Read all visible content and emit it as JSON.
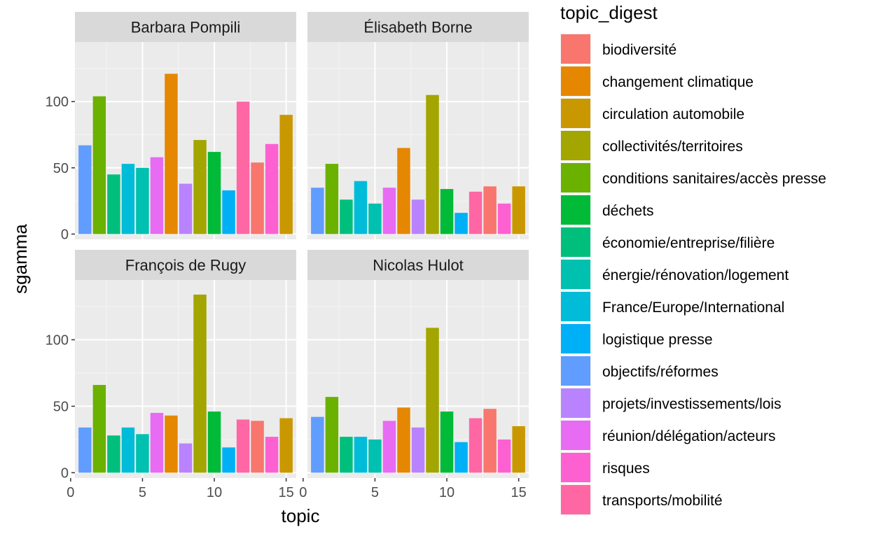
{
  "chart_data": {
    "type": "bar",
    "xlabel": "topic",
    "ylabel": "sgamma",
    "xlim": [
      0.3,
      15.7
    ],
    "ylim": [
      -4,
      145
    ],
    "xticks": [
      0,
      5,
      10,
      15
    ],
    "yticks": [
      0,
      50,
      100
    ],
    "grid": true,
    "legend_position": "right",
    "legend": {
      "title": "topic_digest",
      "entries": [
        {
          "label": "biodiversité",
          "color": "#F8766D"
        },
        {
          "label": "changement climatique",
          "color": "#E58700"
        },
        {
          "label": "circulation automobile",
          "color": "#C99800"
        },
        {
          "label": "collectivités/territoires",
          "color": "#A3A500"
        },
        {
          "label": "conditions sanitaires/accès presse",
          "color": "#6BB100"
        },
        {
          "label": "déchets",
          "color": "#00BA38"
        },
        {
          "label": "économie/entreprise/filière",
          "color": "#00BF7D"
        },
        {
          "label": "énergie/rénovation/logement",
          "color": "#00C0AF"
        },
        {
          "label": "France/Europe/International",
          "color": "#00BCD8"
        },
        {
          "label": "logistique presse",
          "color": "#00B0F6"
        },
        {
          "label": "objectifs/réformes",
          "color": "#619CFF"
        },
        {
          "label": "projets/investissements/lois",
          "color": "#B983FF"
        },
        {
          "label": "réunion/délégation/acteurs",
          "color": "#E76BF3"
        },
        {
          "label": "risques",
          "color": "#FD61D1"
        },
        {
          "label": "transports/mobilité",
          "color": "#FF67A4"
        }
      ]
    },
    "topic_colors": [
      "#619CFF",
      "#6BB100",
      "#00BF7D",
      "#00BCD8",
      "#00C0AF",
      "#E76BF3",
      "#E58700",
      "#B983FF",
      "#A3A500",
      "#00BA38",
      "#00B0F6",
      "#FF67A4",
      "#F8766D",
      "#FD61D1",
      "#C99800"
    ],
    "x": [
      1,
      2,
      3,
      4,
      5,
      6,
      7,
      8,
      9,
      10,
      11,
      12,
      13,
      14,
      15
    ],
    "panels": [
      {
        "name": "Barbara Pompili",
        "values": [
          67,
          104,
          45,
          53,
          50,
          58,
          121,
          38,
          71,
          62,
          33,
          100,
          54,
          68,
          90
        ]
      },
      {
        "name": "Élisabeth Borne",
        "values": [
          35,
          53,
          26,
          40,
          23,
          35,
          65,
          26,
          105,
          34,
          16,
          32,
          36,
          23,
          36
        ]
      },
      {
        "name": "François de Rugy",
        "values": [
          34,
          66,
          28,
          34,
          29,
          45,
          43,
          22,
          134,
          46,
          19,
          40,
          39,
          27,
          41
        ]
      },
      {
        "name": "Nicolas Hulot",
        "values": [
          42,
          57,
          27,
          27,
          25,
          39,
          49,
          34,
          109,
          46,
          23,
          41,
          48,
          25,
          35
        ]
      }
    ]
  }
}
